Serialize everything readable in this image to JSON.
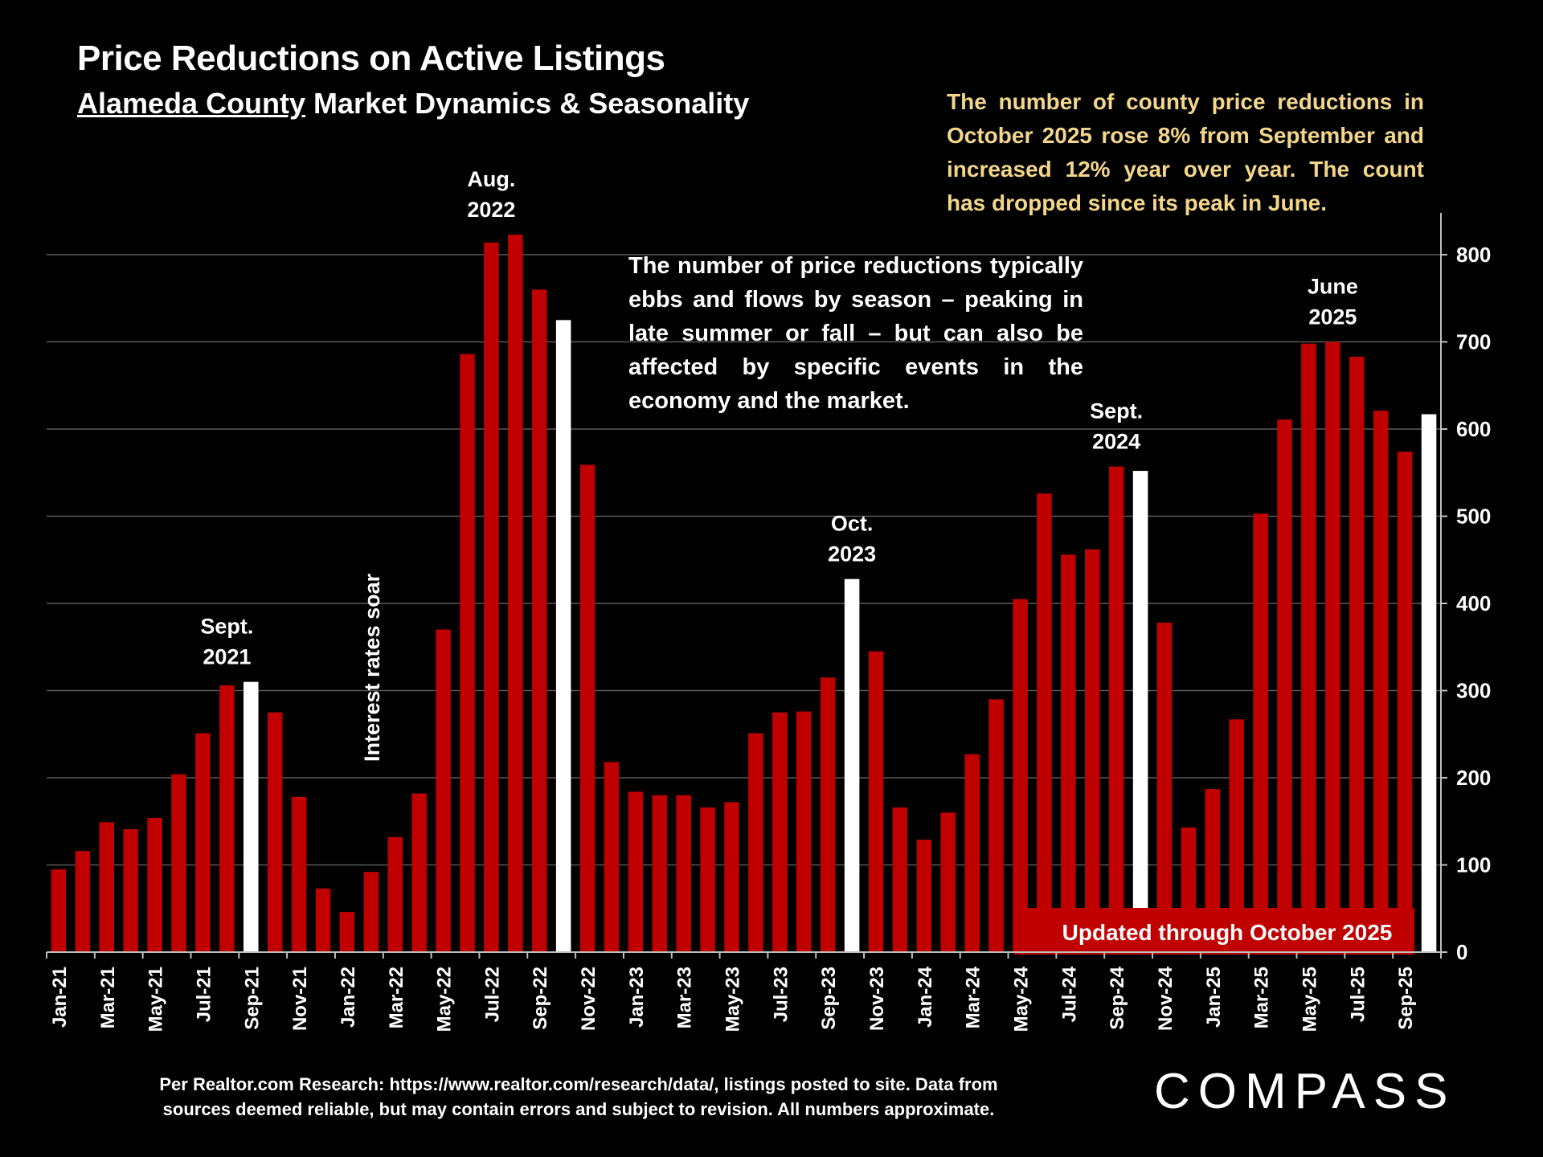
{
  "header": {
    "title": "Price Reductions on Active Listings",
    "subtitle_underlined": "Alameda County",
    "subtitle_rest": " Market Dynamics & Seasonality"
  },
  "notes": {
    "top_right": "The number of county price reductions in October 2025 rose 8% from September and increased 12% year over year. The count has dropped since its peak in June.",
    "middle": "The number of price reductions typically ebbs and flows by season – peaking in late summer or fall – but can also be affected by specific events in the economy and the market."
  },
  "footer": {
    "line1": "Per Realtor.com Research:  https://www.realtor.com/research/data/, listings posted to site. Data from",
    "line2": "sources deemed reliable, but may contain errors and subject to revision. All numbers approximate."
  },
  "logo": "COMPASS",
  "colors": {
    "bar": "#c00000",
    "highlight": "#ffffff",
    "note_top": "#f3d68a",
    "background": "#000000"
  },
  "chart_data": {
    "type": "bar",
    "ylim": [
      0,
      850
    ],
    "yticks": [
      0,
      100,
      200,
      300,
      400,
      500,
      600,
      700,
      800
    ],
    "grid": true,
    "y_axis_side": "right",
    "categories": [
      "Jan-21",
      "Feb-21",
      "Mar-21",
      "Apr-21",
      "May-21",
      "Jun-21",
      "Jul-21",
      "Aug-21",
      "Sep-21",
      "Oct-21",
      "Nov-21",
      "Dec-21",
      "Jan-22",
      "Feb-22",
      "Mar-22",
      "Apr-22",
      "May-22",
      "Jun-22",
      "Jul-22",
      "Aug-22",
      "Sep-22",
      "Oct-22",
      "Nov-22",
      "Dec-22",
      "Jan-23",
      "Feb-23",
      "Mar-23",
      "Apr-23",
      "May-23",
      "Jun-23",
      "Jul-23",
      "Aug-23",
      "Sep-23",
      "Oct-23",
      "Nov-23",
      "Dec-23",
      "Jan-24",
      "Feb-24",
      "Mar-24",
      "Apr-24",
      "May-24",
      "Jun-24",
      "Jul-24",
      "Aug-24",
      "Sep-24",
      "Oct-24",
      "Nov-24",
      "Dec-24",
      "Jan-25",
      "Feb-25",
      "Mar-25",
      "Apr-25",
      "May-25",
      "Jun-25",
      "Jul-25",
      "Aug-25",
      "Sep-25",
      "Oct-25"
    ],
    "x_tick_labels": [
      "Jan-21",
      "",
      "Mar-21",
      "",
      "May-21",
      "",
      "Jul-21",
      "",
      "Sep-21",
      "",
      "Nov-21",
      "",
      "Jan-22",
      "",
      "Mar-22",
      "",
      "May-22",
      "",
      "Jul-22",
      "",
      "Sep-22",
      "",
      "Nov-22",
      "",
      "Jan-23",
      "",
      "Mar-23",
      "",
      "May-23",
      "",
      "Jul-23",
      "",
      "Sep-23",
      "",
      "Nov-23",
      "",
      "Jan-24",
      "",
      "Mar-24",
      "",
      "May-24",
      "",
      "Jul-24",
      "",
      "Sep-24",
      "",
      "Nov-24",
      "",
      "Jan-25",
      "",
      "Mar-25",
      "",
      "May-25",
      "",
      "Jul-25",
      "",
      "Sep-25",
      ""
    ],
    "values": [
      95,
      116,
      149,
      141,
      154,
      204,
      251,
      306,
      310,
      275,
      178,
      73,
      46,
      92,
      132,
      182,
      370,
      686,
      814,
      823,
      760,
      725,
      559,
      218,
      184,
      180,
      180,
      166,
      172,
      251,
      275,
      276,
      315,
      428,
      345,
      166,
      129,
      160,
      227,
      290,
      405,
      526,
      456,
      462,
      557,
      552,
      378,
      143,
      187,
      267,
      503,
      611,
      698,
      700,
      683,
      621,
      574,
      617
    ],
    "highlighted": [
      "Sep-21",
      "Oct-22",
      "Oct-23",
      "Oct-24",
      "Oct-25"
    ],
    "annotations": [
      {
        "text_line1": "Sept.",
        "text_line2": "2021",
        "category": "Aug-21"
      },
      {
        "text_line1": "Aug.",
        "text_line2": "2022",
        "category": "Jul-22"
      },
      {
        "text_line1": "Oct.",
        "text_line2": "2023",
        "category": "Oct-23"
      },
      {
        "text_line1": "Sept.",
        "text_line2": "2024",
        "category": "Sep-24"
      },
      {
        "text_line1": "June",
        "text_line2": "2025",
        "category": "Jun-25"
      }
    ],
    "vertical_note": {
      "text": "Interest rates soar",
      "category": "Feb-22"
    },
    "banner": "Updated through October 2025"
  }
}
